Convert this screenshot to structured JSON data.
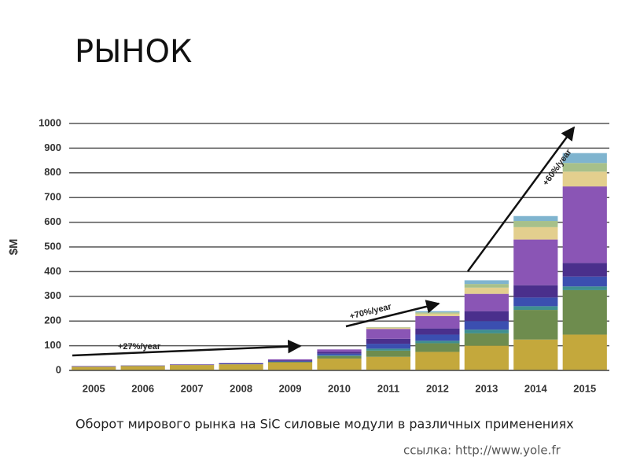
{
  "title": "РЫНОК",
  "caption": "Оборот мирового рынка на SiC силовые модули в различных применениях",
  "source": "ссылка: http://www.yole.fr",
  "chart_data": {
    "type": "stacked_bar",
    "y_label": "$M",
    "categories": [
      "2005",
      "2006",
      "2007",
      "2008",
      "2009",
      "2010",
      "2011",
      "2012",
      "2013",
      "2014",
      "2015"
    ],
    "series": [
      {
        "color": "#c4a83c",
        "values": [
          15,
          18,
          22,
          25,
          32,
          48,
          55,
          75,
          100,
          125,
          145
        ]
      },
      {
        "color": "#6e8c4e",
        "values": [
          0,
          0,
          0,
          0,
          3,
          10,
          25,
          35,
          50,
          120,
          180
        ]
      },
      {
        "color": "#3f8f8f",
        "values": [
          0,
          0,
          0,
          0,
          0,
          3,
          8,
          10,
          15,
          15,
          15
        ]
      },
      {
        "color": "#3b4fb0",
        "values": [
          1,
          1,
          1,
          2,
          3,
          7,
          20,
          25,
          35,
          35,
          40
        ]
      },
      {
        "color": "#4a2f8c",
        "values": [
          1,
          1,
          1,
          2,
          3,
          7,
          20,
          25,
          40,
          50,
          55
        ]
      },
      {
        "color": "#8a55b5",
        "values": [
          1,
          0,
          1,
          1,
          4,
          10,
          40,
          50,
          70,
          185,
          310
        ]
      },
      {
        "color": "#e3cf8e",
        "values": [
          0,
          0,
          0,
          0,
          0,
          0,
          5,
          10,
          25,
          50,
          60
        ]
      },
      {
        "color": "#a7c08a",
        "values": [
          0,
          0,
          0,
          0,
          0,
          0,
          2,
          5,
          15,
          25,
          35
        ]
      },
      {
        "color": "#7fb4cf",
        "values": [
          0,
          0,
          0,
          0,
          0,
          0,
          0,
          5,
          15,
          20,
          40
        ]
      }
    ],
    "annotations": [
      "+27%/year",
      "+70%/year",
      "+60%/year"
    ],
    "ylim": [
      0,
      1000
    ],
    "yticks": [
      0,
      100,
      200,
      300,
      400,
      500,
      600,
      700,
      800,
      900,
      1000
    ],
    "grid": true
  }
}
